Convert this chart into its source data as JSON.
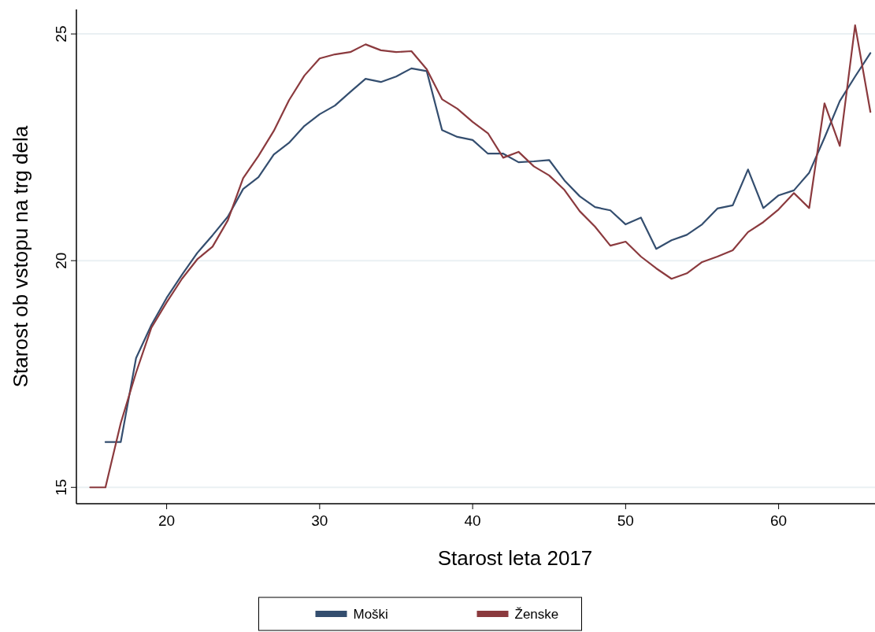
{
  "chart_data": {
    "type": "line",
    "xlabel": "Starost leta 2017",
    "ylabel": "Starost ob vstopu na trg dela",
    "xlim": [
      14.1,
      66.3
    ],
    "ylim": [
      14.64,
      25.54
    ],
    "xticks": [
      20,
      30,
      40,
      50,
      60
    ],
    "yticks": [
      15,
      20,
      25
    ],
    "grid": "y",
    "legend": "bottom",
    "line_style": "solid",
    "marker": "none",
    "series": [
      {
        "name": "Moški",
        "color": "#344e6f",
        "x": [
          16,
          17,
          18,
          19,
          20,
          21,
          22,
          23,
          24,
          25,
          26,
          27,
          28,
          29,
          30,
          31,
          32,
          33,
          34,
          35,
          36,
          37,
          38,
          39,
          40,
          41,
          42,
          43,
          44,
          45,
          46,
          47,
          48,
          49,
          50,
          51,
          52,
          53,
          54,
          55,
          56,
          57,
          58,
          59,
          60,
          61,
          62,
          63,
          64,
          65,
          66
        ],
        "values": [
          16.0,
          16.0,
          17.85,
          18.58,
          19.18,
          19.69,
          20.17,
          20.56,
          20.97,
          21.58,
          21.84,
          22.34,
          22.6,
          22.97,
          23.23,
          23.42,
          23.72,
          24.01,
          23.94,
          24.06,
          24.24,
          24.18,
          22.88,
          22.73,
          22.66,
          22.36,
          22.36,
          22.17,
          22.19,
          22.22,
          21.77,
          21.42,
          21.18,
          21.11,
          20.8,
          20.95,
          20.26,
          20.45,
          20.57,
          20.8,
          21.15,
          21.22,
          22.01,
          21.16,
          21.44,
          21.55,
          21.94,
          22.71,
          23.52,
          24.06,
          24.58
        ]
      },
      {
        "name": "Ženske",
        "color": "#8b3a3e",
        "x": [
          15,
          16,
          17,
          18,
          19,
          20,
          21,
          22,
          23,
          24,
          25,
          26,
          27,
          28,
          29,
          30,
          31,
          32,
          33,
          34,
          35,
          36,
          37,
          38,
          39,
          40,
          41,
          42,
          43,
          44,
          45,
          46,
          47,
          48,
          49,
          50,
          51,
          52,
          53,
          54,
          55,
          56,
          57,
          58,
          59,
          60,
          61,
          62,
          63,
          64,
          65,
          66
        ],
        "values": [
          15.0,
          15.0,
          16.42,
          17.53,
          18.52,
          19.08,
          19.6,
          20.03,
          20.31,
          20.89,
          21.82,
          22.31,
          22.86,
          23.54,
          24.08,
          24.46,
          24.55,
          24.6,
          24.77,
          24.64,
          24.6,
          24.62,
          24.22,
          23.56,
          23.35,
          23.06,
          22.81,
          22.27,
          22.4,
          22.08,
          21.88,
          21.56,
          21.09,
          20.75,
          20.33,
          20.42,
          20.09,
          19.83,
          19.6,
          19.72,
          19.97,
          20.09,
          20.23,
          20.63,
          20.85,
          21.13,
          21.49,
          21.16,
          23.47,
          22.53,
          25.19,
          23.28
        ]
      }
    ]
  }
}
